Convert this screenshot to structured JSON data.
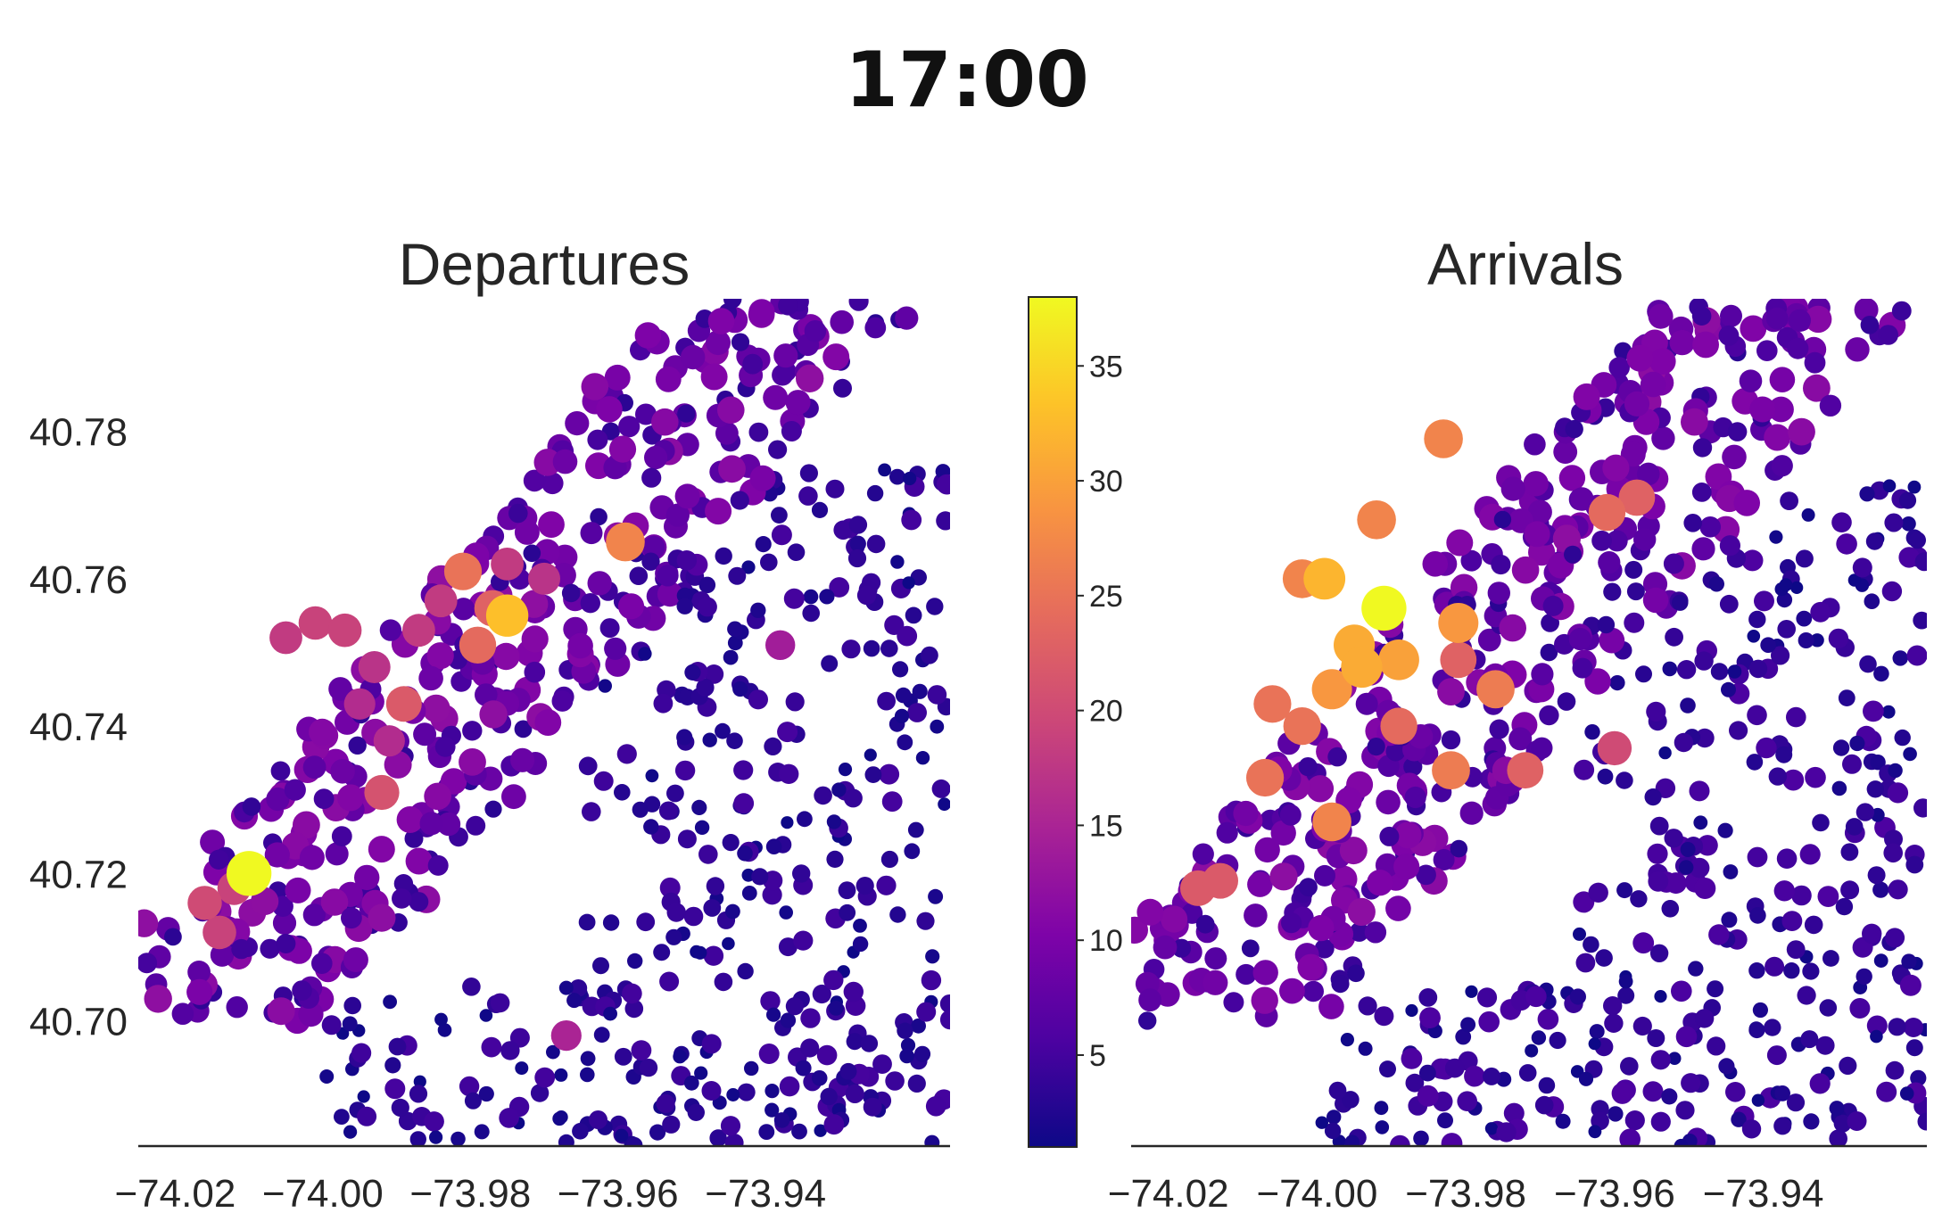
{
  "title": "17:00",
  "chart_data": [
    {
      "type": "scatter",
      "title": "Departures",
      "xlim": [
        -74.025,
        -73.915
      ],
      "ylim": [
        40.683,
        40.798
      ],
      "xticks": [
        "-74.02",
        "-74.00",
        "-73.98",
        "-73.96",
        "-73.94"
      ],
      "xtick_values": [
        -74.02,
        -74.0,
        -73.98,
        -73.96,
        -73.94
      ],
      "yticks": [
        "40.70",
        "40.72",
        "40.74",
        "40.76",
        "40.78"
      ],
      "ytick_values": [
        40.7,
        40.72,
        40.74,
        40.76,
        40.78
      ],
      "highlight_points": [
        {
          "x": -74.01,
          "y": 40.72,
          "value": 38
        },
        {
          "x": -73.975,
          "y": 40.755,
          "value": 33
        },
        {
          "x": -73.959,
          "y": 40.765,
          "value": 27
        },
        {
          "x": -73.981,
          "y": 40.761,
          "value": 25
        },
        {
          "x": -73.979,
          "y": 40.751,
          "value": 24
        },
        {
          "x": -73.977,
          "y": 40.756,
          "value": 23
        },
        {
          "x": -73.989,
          "y": 40.743,
          "value": 22
        },
        {
          "x": -73.992,
          "y": 40.731,
          "value": 21
        },
        {
          "x": -74.016,
          "y": 40.716,
          "value": 20
        },
        {
          "x": -74.014,
          "y": 40.712,
          "value": 19
        },
        {
          "x": -74.012,
          "y": 40.718,
          "value": 19
        },
        {
          "x": -74.001,
          "y": 40.754,
          "value": 19
        },
        {
          "x": -73.997,
          "y": 40.753,
          "value": 19
        },
        {
          "x": -74.005,
          "y": 40.752,
          "value": 18
        },
        {
          "x": -73.984,
          "y": 40.757,
          "value": 18
        },
        {
          "x": -73.975,
          "y": 40.762,
          "value": 18
        },
        {
          "x": -73.987,
          "y": 40.753,
          "value": 18
        },
        {
          "x": -73.993,
          "y": 40.748,
          "value": 17
        },
        {
          "x": -73.97,
          "y": 40.76,
          "value": 17
        },
        {
          "x": -73.991,
          "y": 40.738,
          "value": 16
        },
        {
          "x": -73.995,
          "y": 40.743,
          "value": 16
        },
        {
          "x": -73.967,
          "y": 40.698,
          "value": 15
        },
        {
          "x": -73.938,
          "y": 40.751,
          "value": 14
        }
      ],
      "background_points": {
        "count": 760,
        "value_range": [
          1,
          12
        ]
      }
    },
    {
      "type": "scatter",
      "title": "Arrivals",
      "xlim": [
        -74.025,
        -73.918
      ],
      "ylim": [
        40.683,
        40.798
      ],
      "xticks": [
        "-74.02",
        "-74.00",
        "-73.98",
        "-73.96",
        "-73.94"
      ],
      "xtick_values": [
        -74.02,
        -74.0,
        -73.98,
        -73.96,
        -73.94
      ],
      "highlight_points": [
        {
          "x": -73.991,
          "y": 40.756,
          "value": 38
        },
        {
          "x": -73.999,
          "y": 40.76,
          "value": 32
        },
        {
          "x": -73.995,
          "y": 40.751,
          "value": 31
        },
        {
          "x": -73.994,
          "y": 40.748,
          "value": 31
        },
        {
          "x": -73.989,
          "y": 40.749,
          "value": 30
        },
        {
          "x": -73.981,
          "y": 40.754,
          "value": 29
        },
        {
          "x": -73.998,
          "y": 40.745,
          "value": 29
        },
        {
          "x": -74.002,
          "y": 40.76,
          "value": 27
        },
        {
          "x": -73.976,
          "y": 40.745,
          "value": 26
        },
        {
          "x": -73.992,
          "y": 40.768,
          "value": 27
        },
        {
          "x": -73.983,
          "y": 40.779,
          "value": 27
        },
        {
          "x": -73.998,
          "y": 40.727,
          "value": 27
        },
        {
          "x": -73.982,
          "y": 40.734,
          "value": 26
        },
        {
          "x": -74.006,
          "y": 40.743,
          "value": 25
        },
        {
          "x": -74.002,
          "y": 40.74,
          "value": 25
        },
        {
          "x": -73.989,
          "y": 40.74,
          "value": 24
        },
        {
          "x": -73.961,
          "y": 40.769,
          "value": 24
        },
        {
          "x": -73.957,
          "y": 40.771,
          "value": 23
        },
        {
          "x": -74.007,
          "y": 40.733,
          "value": 25
        },
        {
          "x": -74.016,
          "y": 40.718,
          "value": 22
        },
        {
          "x": -74.013,
          "y": 40.719,
          "value": 22
        },
        {
          "x": -73.972,
          "y": 40.734,
          "value": 23
        },
        {
          "x": -73.981,
          "y": 40.749,
          "value": 23
        },
        {
          "x": -73.96,
          "y": 40.737,
          "value": 20
        }
      ],
      "background_points": {
        "count": 780,
        "value_range": [
          1,
          14
        ]
      }
    }
  ],
  "colorbar": {
    "colormap": "plasma",
    "vmin": 1,
    "vmax": 38,
    "ticks": [
      "5",
      "10",
      "15",
      "20",
      "25",
      "30",
      "35"
    ],
    "tick_values": [
      5,
      10,
      15,
      20,
      25,
      30,
      35
    ]
  }
}
